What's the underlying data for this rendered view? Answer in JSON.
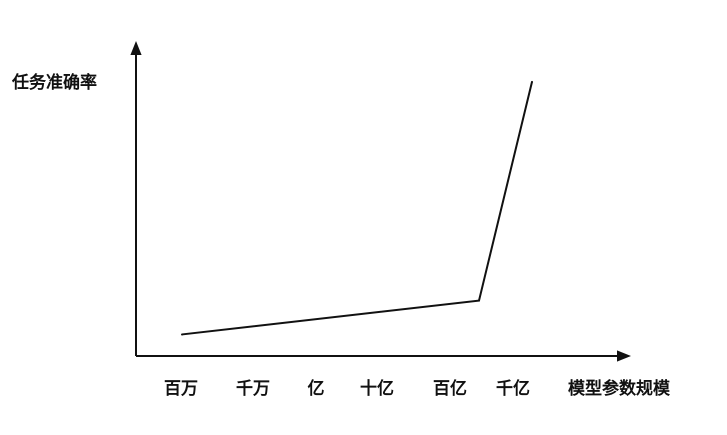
{
  "chart_data": {
    "type": "line",
    "title": "",
    "ylabel": "任务准确率",
    "xlabel": "模型参数规模",
    "categories": [
      "百万",
      "千万",
      "亿",
      "十亿",
      "百亿",
      "千亿"
    ],
    "series": [
      {
        "x": [
          "百万",
          "百亿",
          "千亿"
        ],
        "values": [
          0.07,
          0.18,
          0.89
        ]
      }
    ],
    "ylim": [
      0,
      1
    ],
    "grid": false,
    "legend": "none"
  }
}
